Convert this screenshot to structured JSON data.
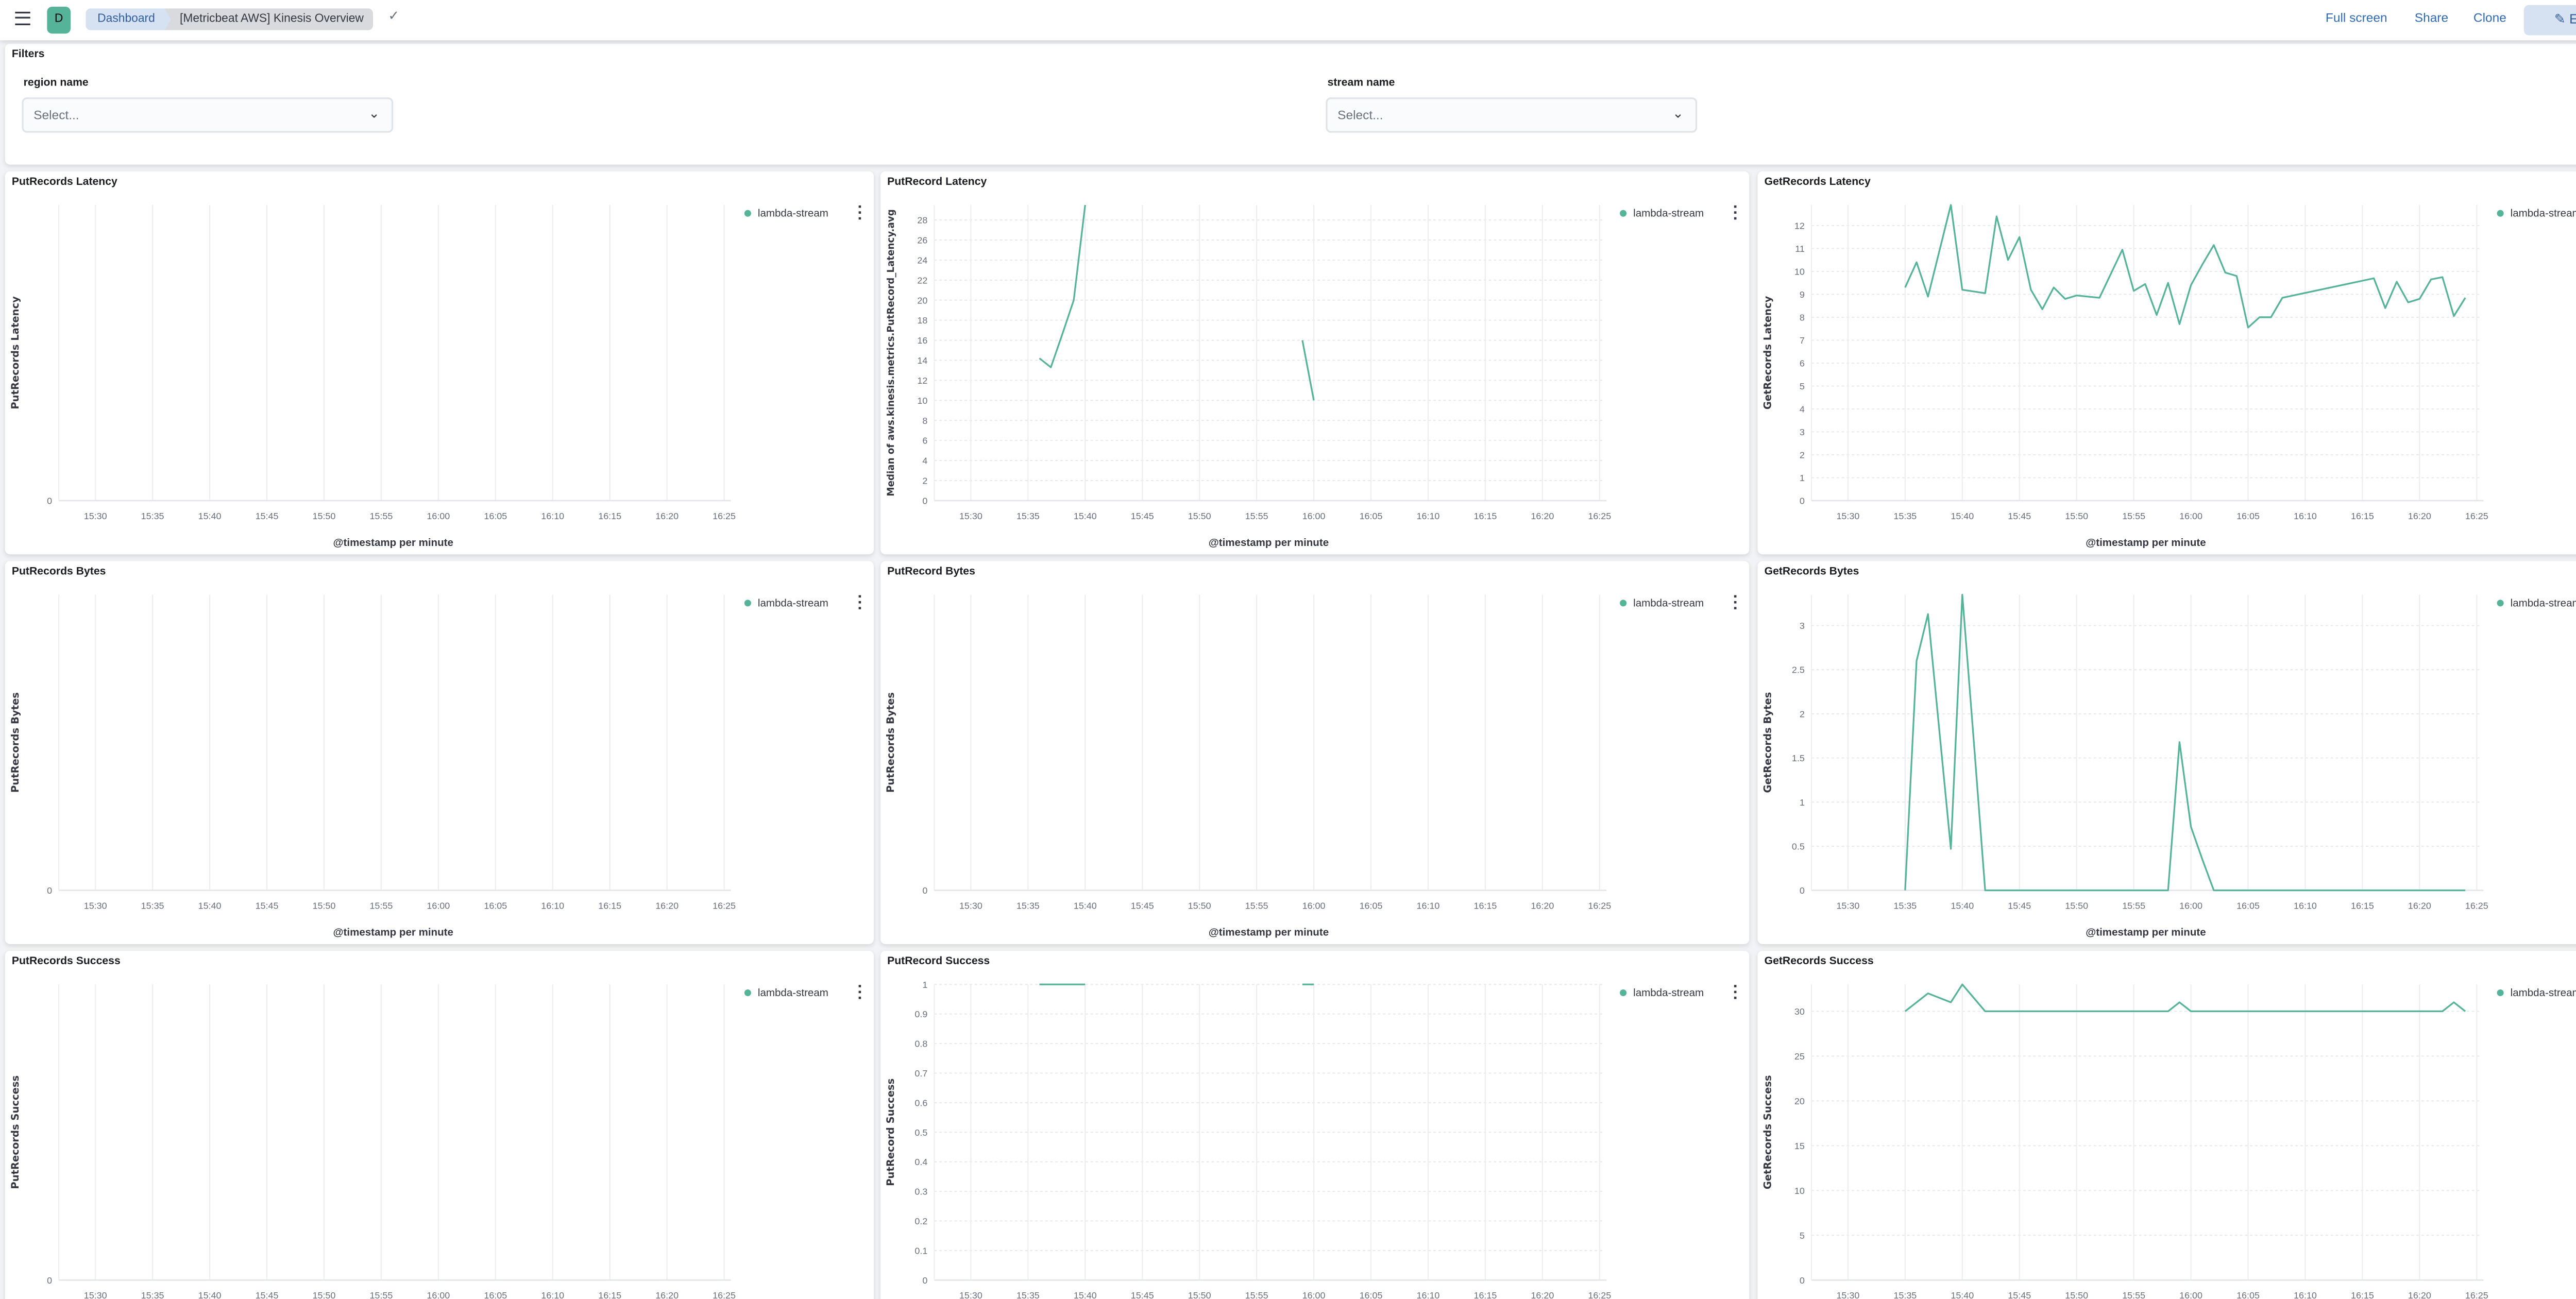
{
  "header": {
    "avatar_letter": "D",
    "breadcrumbs": [
      "Dashboard",
      "[Metricbeat AWS] Kinesis Overview"
    ],
    "actions": {
      "full_screen": "Full screen",
      "share": "Share",
      "clone": "Clone",
      "edit": "Edit"
    }
  },
  "filters": {
    "title": "Filters",
    "controls": [
      {
        "label": "region name",
        "placeholder": "Select..."
      },
      {
        "label": "stream name",
        "placeholder": "Select..."
      }
    ]
  },
  "colors": {
    "series": "#54b399",
    "accent": "#2f6ab4"
  },
  "chart_data": [
    {
      "type": "line",
      "title": "PutRecords Latency",
      "ylabel": "PutRecords Latency",
      "xlabel": "@timestamp per minute",
      "legend": "lambda-stream",
      "xlim": [
        "15:27",
        "16:25"
      ],
      "ylim": [
        0,
        1
      ],
      "yticks": [
        "0"
      ],
      "xticks": [
        "15:30",
        "15:35",
        "15:40",
        "15:45",
        "15:50",
        "15:55",
        "16:00",
        "16:05",
        "16:10",
        "16:15",
        "16:20",
        "16:25"
      ],
      "points": []
    },
    {
      "type": "line",
      "title": "PutRecord Latency",
      "ylabel": "Median of aws.kinesis.metrics.PutRecord_Latency.avg",
      "xlabel": "@timestamp per minute",
      "legend": "lambda-stream",
      "xlim": [
        "15:27",
        "16:25"
      ],
      "ylim": [
        0,
        29.5
      ],
      "yticks": [
        "0",
        "2",
        "4",
        "6",
        "8",
        "10",
        "12",
        "14",
        "16",
        "18",
        "20",
        "22",
        "24",
        "26",
        "28"
      ],
      "xticks": [
        "15:30",
        "15:35",
        "15:40",
        "15:45",
        "15:50",
        "15:55",
        "16:00",
        "16:05",
        "16:10",
        "16:15",
        "16:20",
        "16:25"
      ],
      "points": [
        [
          "15:36",
          14.2
        ],
        [
          "15:37",
          13.3
        ],
        [
          "15:38",
          16.6
        ],
        [
          "15:39",
          20
        ],
        [
          "15:40",
          29.5
        ],
        [
          "15:41",
          null
        ],
        [
          "15:59",
          16
        ],
        [
          "16:00",
          10
        ]
      ]
    },
    {
      "type": "line",
      "title": "GetRecords Latency",
      "ylabel": "GetRecords Latency",
      "xlabel": "@timestamp per minute",
      "legend": "lambda-stream",
      "options_label": "•••",
      "xlim": [
        "15:27",
        "16:25"
      ],
      "ylim": [
        0,
        12.9
      ],
      "yticks": [
        "0",
        "1",
        "2",
        "3",
        "4",
        "5",
        "6",
        "7",
        "8",
        "9",
        "10",
        "11",
        "12"
      ],
      "xticks": [
        "15:30",
        "15:35",
        "15:40",
        "15:45",
        "15:50",
        "15:55",
        "16:00",
        "16:05",
        "16:10",
        "16:15",
        "16:20",
        "16:25"
      ],
      "points": [
        [
          "15:35",
          9.3
        ],
        [
          "15:36",
          10.4
        ],
        [
          "15:37",
          8.9
        ],
        [
          "15:38",
          10.9
        ],
        [
          "15:39",
          12.9
        ],
        [
          "15:40",
          9.2
        ],
        [
          "15:42",
          9.05
        ],
        [
          "15:43",
          12.4
        ],
        [
          "15:44",
          10.5
        ],
        [
          "15:45",
          11.5
        ],
        [
          "15:46",
          9.2
        ],
        [
          "15:47",
          8.35
        ],
        [
          "15:48",
          9.3
        ],
        [
          "15:49",
          8.8
        ],
        [
          "15:50",
          8.95
        ],
        [
          "15:51",
          8.9
        ],
        [
          "15:52",
          8.85
        ],
        [
          "15:53",
          9.9
        ],
        [
          "15:54",
          10.95
        ],
        [
          "15:55",
          9.15
        ],
        [
          "15:56",
          9.45
        ],
        [
          "15:57",
          8.1
        ],
        [
          "15:58",
          9.5
        ],
        [
          "15:59",
          7.7
        ],
        [
          "16:00",
          9.4
        ],
        [
          "16:01",
          10.3
        ],
        [
          "16:02",
          11.15
        ],
        [
          "16:03",
          9.95
        ],
        [
          "16:04",
          9.8
        ],
        [
          "16:05",
          7.55
        ],
        [
          "16:06",
          8.0
        ],
        [
          "16:07",
          8.0
        ],
        [
          "16:08",
          8.85
        ],
        [
          "16:16",
          9.7
        ],
        [
          "16:17",
          8.4
        ],
        [
          "16:18",
          9.55
        ],
        [
          "16:19",
          8.65
        ],
        [
          "16:20",
          8.8
        ],
        [
          "16:21",
          9.65
        ],
        [
          "16:22",
          9.75
        ],
        [
          "16:23",
          8.05
        ],
        [
          "16:24",
          8.85
        ]
      ]
    },
    {
      "type": "line",
      "title": "PutRecords Bytes",
      "ylabel": "PutRecords Bytes",
      "xlabel": "@timestamp per minute",
      "legend": "lambda-stream",
      "xlim": [
        "15:27",
        "16:25"
      ],
      "ylim": [
        0,
        1
      ],
      "yticks": [
        "0"
      ],
      "xticks": [
        "15:30",
        "15:35",
        "15:40",
        "15:45",
        "15:50",
        "15:55",
        "16:00",
        "16:05",
        "16:10",
        "16:15",
        "16:20",
        "16:25"
      ],
      "points": []
    },
    {
      "type": "line",
      "title": "PutRecord Bytes",
      "ylabel": "PutRecords Bytes",
      "xlabel": "@timestamp per minute",
      "legend": "lambda-stream",
      "xlim": [
        "15:27",
        "16:25"
      ],
      "ylim": [
        0,
        1
      ],
      "yticks": [
        "0"
      ],
      "xticks": [
        "15:30",
        "15:35",
        "15:40",
        "15:45",
        "15:50",
        "15:55",
        "16:00",
        "16:05",
        "16:10",
        "16:15",
        "16:20",
        "16:25"
      ],
      "points": []
    },
    {
      "type": "line",
      "title": "GetRecords Bytes",
      "ylabel": "GetRecords Bytes",
      "xlabel": "@timestamp per minute",
      "legend": "lambda-stream",
      "xlim": [
        "15:27",
        "16:25"
      ],
      "ylim": [
        0,
        3.35
      ],
      "yticks": [
        "0",
        "0.5",
        "1",
        "1.5",
        "2",
        "2.5",
        "3"
      ],
      "xticks": [
        "15:30",
        "15:35",
        "15:40",
        "15:45",
        "15:50",
        "15:55",
        "16:00",
        "16:05",
        "16:10",
        "16:15",
        "16:20",
        "16:25"
      ],
      "points": [
        [
          "15:35",
          0
        ],
        [
          "15:36",
          2.6
        ],
        [
          "15:37",
          3.13
        ],
        [
          "15:38",
          1.8
        ],
        [
          "15:39",
          0.47
        ],
        [
          "15:40",
          3.35
        ],
        [
          "15:41",
          1.7
        ],
        [
          "15:42",
          0
        ],
        [
          "15:58",
          0
        ],
        [
          "15:59",
          1.68
        ],
        [
          "16:00",
          0.72
        ],
        [
          "16:01",
          0.35
        ],
        [
          "16:02",
          0
        ],
        [
          "16:24",
          0
        ]
      ]
    },
    {
      "type": "line",
      "title": "PutRecords Success",
      "ylabel": "PutRecords Success",
      "legend": "lambda-stream",
      "xlim": [
        "15:27",
        "16:25"
      ],
      "ylim": [
        0,
        1
      ],
      "yticks": [
        "0"
      ],
      "xticks": [
        "15:30",
        "15:35",
        "15:40",
        "15:45",
        "15:50",
        "15:55",
        "16:00",
        "16:05",
        "16:10",
        "16:15",
        "16:20",
        "16:25"
      ],
      "points": []
    },
    {
      "type": "line",
      "title": "PutRecord Success",
      "ylabel": "PutRecord Success",
      "legend": "lambda-stream",
      "xlim": [
        "15:27",
        "16:25"
      ],
      "ylim": [
        0,
        1
      ],
      "yticks": [
        "0",
        "0.1",
        "0.2",
        "0.3",
        "0.4",
        "0.5",
        "0.6",
        "0.7",
        "0.8",
        "0.9",
        "1"
      ],
      "xticks": [
        "15:30",
        "15:35",
        "15:40",
        "15:45",
        "15:50",
        "15:55",
        "16:00",
        "16:05",
        "16:10",
        "16:15",
        "16:20",
        "16:25"
      ],
      "points": [
        [
          "15:36",
          1
        ],
        [
          "15:37",
          1
        ],
        [
          "15:38",
          1
        ],
        [
          "15:39",
          1
        ],
        [
          "15:40",
          1
        ],
        [
          "15:41",
          null
        ],
        [
          "15:59",
          1
        ],
        [
          "16:00",
          1
        ]
      ]
    },
    {
      "type": "line",
      "title": "GetRecords Success",
      "ylabel": "GetRecords Success",
      "legend": "lambda-stream",
      "xlim": [
        "15:27",
        "16:25"
      ],
      "ylim": [
        0,
        33
      ],
      "yticks": [
        "0",
        "5",
        "10",
        "15",
        "20",
        "25",
        "30"
      ],
      "xticks": [
        "15:30",
        "15:35",
        "15:40",
        "15:45",
        "15:50",
        "15:55",
        "16:00",
        "16:05",
        "16:10",
        "16:15",
        "16:20",
        "16:25"
      ],
      "points": [
        [
          "15:35",
          30
        ],
        [
          "15:37",
          32
        ],
        [
          "15:39",
          31
        ],
        [
          "15:40",
          33
        ],
        [
          "15:42",
          30
        ],
        [
          "15:58",
          30
        ],
        [
          "15:59",
          31
        ],
        [
          "16:00",
          30
        ],
        [
          "16:22",
          30
        ],
        [
          "16:23",
          31
        ],
        [
          "16:24",
          30
        ]
      ]
    }
  ]
}
